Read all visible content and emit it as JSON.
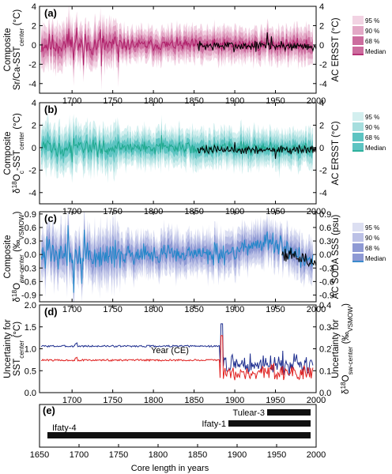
{
  "figure": {
    "xlabel_main": "Year (CE)",
    "xlabel_core": "Core length in years"
  },
  "chart_data": [
    {
      "id": "a",
      "type": "line",
      "panel_label": "(a)",
      "ylabel_left": [
        "Composite",
        "Sr/Ca-SST",
        "center",
        " (°C)"
      ],
      "ylabel_right": "AC ERSST (°C)",
      "xlim": [
        1660,
        2000
      ],
      "ylim": [
        -5,
        4
      ],
      "yticks": [
        -4,
        -2,
        0,
        2,
        4
      ],
      "ylim_right": [
        -5,
        4
      ],
      "yticks_right": [
        -4,
        -2,
        0,
        2,
        4
      ],
      "xticks": [
        1700,
        1750,
        1800,
        1850,
        1900,
        1950,
        2000
      ],
      "colors": {
        "median": "#b0206a",
        "b95": "#f2d3e3",
        "b90": "#e3a8c6",
        "b68": "#cc6c9e",
        "obs": "#000000"
      },
      "legend": {
        "placement": "right",
        "entries": [
          "95 %",
          "90 %",
          "68 %",
          "Median"
        ]
      },
      "series": [
        {
          "role": "median",
          "start": 1662,
          "end": 1996,
          "base": 0,
          "amp": 0.5,
          "early_amp": 1.0,
          "spikes": [
            [
              1696,
              1.7
            ],
            [
              1706,
              1.8
            ],
            [
              1735,
              1.6
            ],
            [
              1714,
              -2.1
            ],
            [
              1736,
              -2.2
            ],
            [
              1757,
              -1.8
            ],
            [
              1940,
              1.3
            ]
          ]
        },
        {
          "role": "obs",
          "name": "AC ERSST",
          "start": 1854,
          "end": 2000,
          "base": -0.1,
          "amp": 0.45,
          "spikes": [
            [
              1940,
              1.4
            ],
            [
              1945,
              1.0
            ]
          ]
        }
      ],
      "bands": {
        "b95": 1.6,
        "b90": 1.1,
        "b68": 0.6
      }
    },
    {
      "id": "b",
      "type": "line",
      "panel_label": "(b)",
      "ylabel_left": [
        "Composite",
        "δ18O",
        "c",
        "-SST",
        "center",
        " (°C)"
      ],
      "ylabel_right": "AC ERSST (°C)",
      "xlim": [
        1660,
        2000
      ],
      "ylim": [
        -5,
        4
      ],
      "yticks": [
        -4,
        -2,
        0,
        2,
        4
      ],
      "ylim_right": [
        -5,
        4
      ],
      "yticks_right": [
        -4,
        -2,
        0,
        2,
        4
      ],
      "xticks": [
        1700,
        1750,
        1800,
        1850,
        1900,
        1950,
        2000
      ],
      "colors": {
        "median": "#1fa98f",
        "b95": "#d3efef",
        "b90": "#a6dede",
        "b68": "#5dc4c2",
        "obs": "#000000"
      },
      "legend": {
        "placement": "right",
        "entries": [
          "95 %",
          "90 %",
          "68 %",
          "Median"
        ]
      },
      "series": [
        {
          "role": "median",
          "start": 1662,
          "end": 1996,
          "base": 0,
          "amp": 0.45,
          "early_amp": 0.6,
          "spikes": [
            [
              1700,
              -1.3
            ],
            [
              1810,
              1.1
            ],
            [
              1955,
              -0.8
            ]
          ]
        },
        {
          "role": "obs",
          "name": "AC ERSST",
          "start": 1854,
          "end": 2000,
          "base": -0.2,
          "amp": 0.35,
          "spikes": [
            [
              1900,
              0.7
            ],
            [
              1950,
              -0.8
            ]
          ]
        }
      ],
      "bands": {
        "b95": 1.5,
        "b90": 1.05,
        "b68": 0.55
      }
    },
    {
      "id": "c",
      "type": "line",
      "panel_label": "(c)",
      "ylabel_left": [
        "Composite",
        "δ18O",
        "sw-center",
        " (‰",
        "VSMOW",
        ")"
      ],
      "ylabel_right": "AC SODA SSS (psu)",
      "xlim": [
        1660,
        2000
      ],
      "ylim": [
        -1.05,
        0.95
      ],
      "yticks": [
        -0.9,
        -0.6,
        -0.3,
        0.0,
        0.3,
        0.6,
        0.9
      ],
      "ytick_labels": [
        "-0.9",
        "-0.6",
        "-0.3",
        "0.0",
        "0.3",
        "0.6",
        "0.9"
      ],
      "ylim_right": [
        -1.05,
        0.95
      ],
      "yticks_right": [
        -0.9,
        -0.6,
        -0.3,
        0.0,
        0.3,
        0.6,
        0.9
      ],
      "ytick_labels_right": [
        "-0.9",
        "-0.6",
        "-0.3",
        "0.0",
        "0.3",
        "0.6",
        "0.9"
      ],
      "xticks": [
        1700,
        1750,
        1800,
        1850,
        1900,
        1950,
        2000
      ],
      "colors": {
        "median": "#1f86c9",
        "b95": "#dcdff2",
        "b90": "#bcc1e6",
        "b68": "#8f9ad4",
        "obs": "#000000"
      },
      "legend": {
        "placement": "right",
        "entries": [
          "95 %",
          "90 %",
          "68 %",
          "Median"
        ]
      },
      "series": [
        {
          "role": "median",
          "start": 1662,
          "end": 1996,
          "base": 0,
          "amp": 0.18,
          "early_amp": 0.3,
          "trend": [
            [
              1662,
              0.0
            ],
            [
              1890,
              0.02
            ],
            [
              1935,
              0.3
            ],
            [
              1960,
              0.15
            ],
            [
              1996,
              -0.15
            ]
          ],
          "spikes": [
            [
              1695,
              0.65
            ],
            [
              1702,
              -0.85
            ],
            [
              1715,
              0.55
            ],
            [
              1712,
              -0.65
            ]
          ]
        },
        {
          "role": "obs",
          "name": "AC SODA SSS",
          "start": 1958,
          "end": 2000,
          "base": 0.0,
          "amp": 0.12,
          "trend": [
            [
              1958,
              0.05
            ],
            [
              2000,
              -0.2
            ]
          ],
          "spikes": []
        }
      ],
      "bands": {
        "b95": 0.42,
        "b90": 0.3,
        "b68": 0.16
      }
    },
    {
      "id": "d",
      "type": "line",
      "panel_label": "(d)",
      "ylabel_left": [
        "Uncertainty for",
        "SST",
        "center",
        " (°C)"
      ],
      "ylabel_right": [
        "Uncertainty for",
        "δ18O",
        "sw-center",
        " (‰",
        "VSMOW",
        ")"
      ],
      "xlim": [
        1660,
        2000
      ],
      "ylim": [
        0,
        2.0
      ],
      "yticks": [
        0.0,
        0.5,
        1.0,
        1.5,
        2.0
      ],
      "ytick_labels": [
        "0.0",
        "0.5",
        "1.0",
        "1.5",
        "2.0"
      ],
      "ylim_right": [
        0,
        0.4
      ],
      "yticks_right": [
        0.0,
        0.1,
        0.2,
        0.3,
        0.4
      ],
      "ytick_labels_right": [
        "0.0",
        "0.1",
        "0.2",
        "0.3",
        "0.4"
      ],
      "xticks": [
        1700,
        1750,
        1800,
        1850,
        1900,
        1950,
        2000
      ],
      "xlabel": "Year (CE)",
      "series": [
        {
          "name": "SST uncertainty",
          "color": "#1f2f8f",
          "start": 1662,
          "end": 1996,
          "flat": 1.06,
          "flat_until": 1882,
          "late_level": 0.65,
          "late_amp": 0.28,
          "peak": [
            1884,
            1.57
          ]
        },
        {
          "name": "δ18Osw uncertainty",
          "color": "#e0201f",
          "start": 1662,
          "end": 1996,
          "flat": 0.74,
          "flat_until": 1882,
          "late_level": 0.45,
          "late_amp": 0.22,
          "peak": [
            1884,
            1.3
          ]
        }
      ]
    },
    {
      "id": "e",
      "type": "bar",
      "panel_label": "(e)",
      "xlim": [
        1650,
        2000
      ],
      "xticks": [
        1650,
        1700,
        1750,
        1800,
        1850,
        1900,
        1950,
        2000
      ],
      "xlabel": "Core length in years",
      "bar_color": "#111111",
      "cores": [
        {
          "name": "Tulear-3",
          "start": 1938,
          "end": 1993
        },
        {
          "name": "Ifaty-1",
          "start": 1889,
          "end": 1993
        },
        {
          "name": "Ifaty-4",
          "start": 1660,
          "end": 1993
        }
      ]
    }
  ]
}
